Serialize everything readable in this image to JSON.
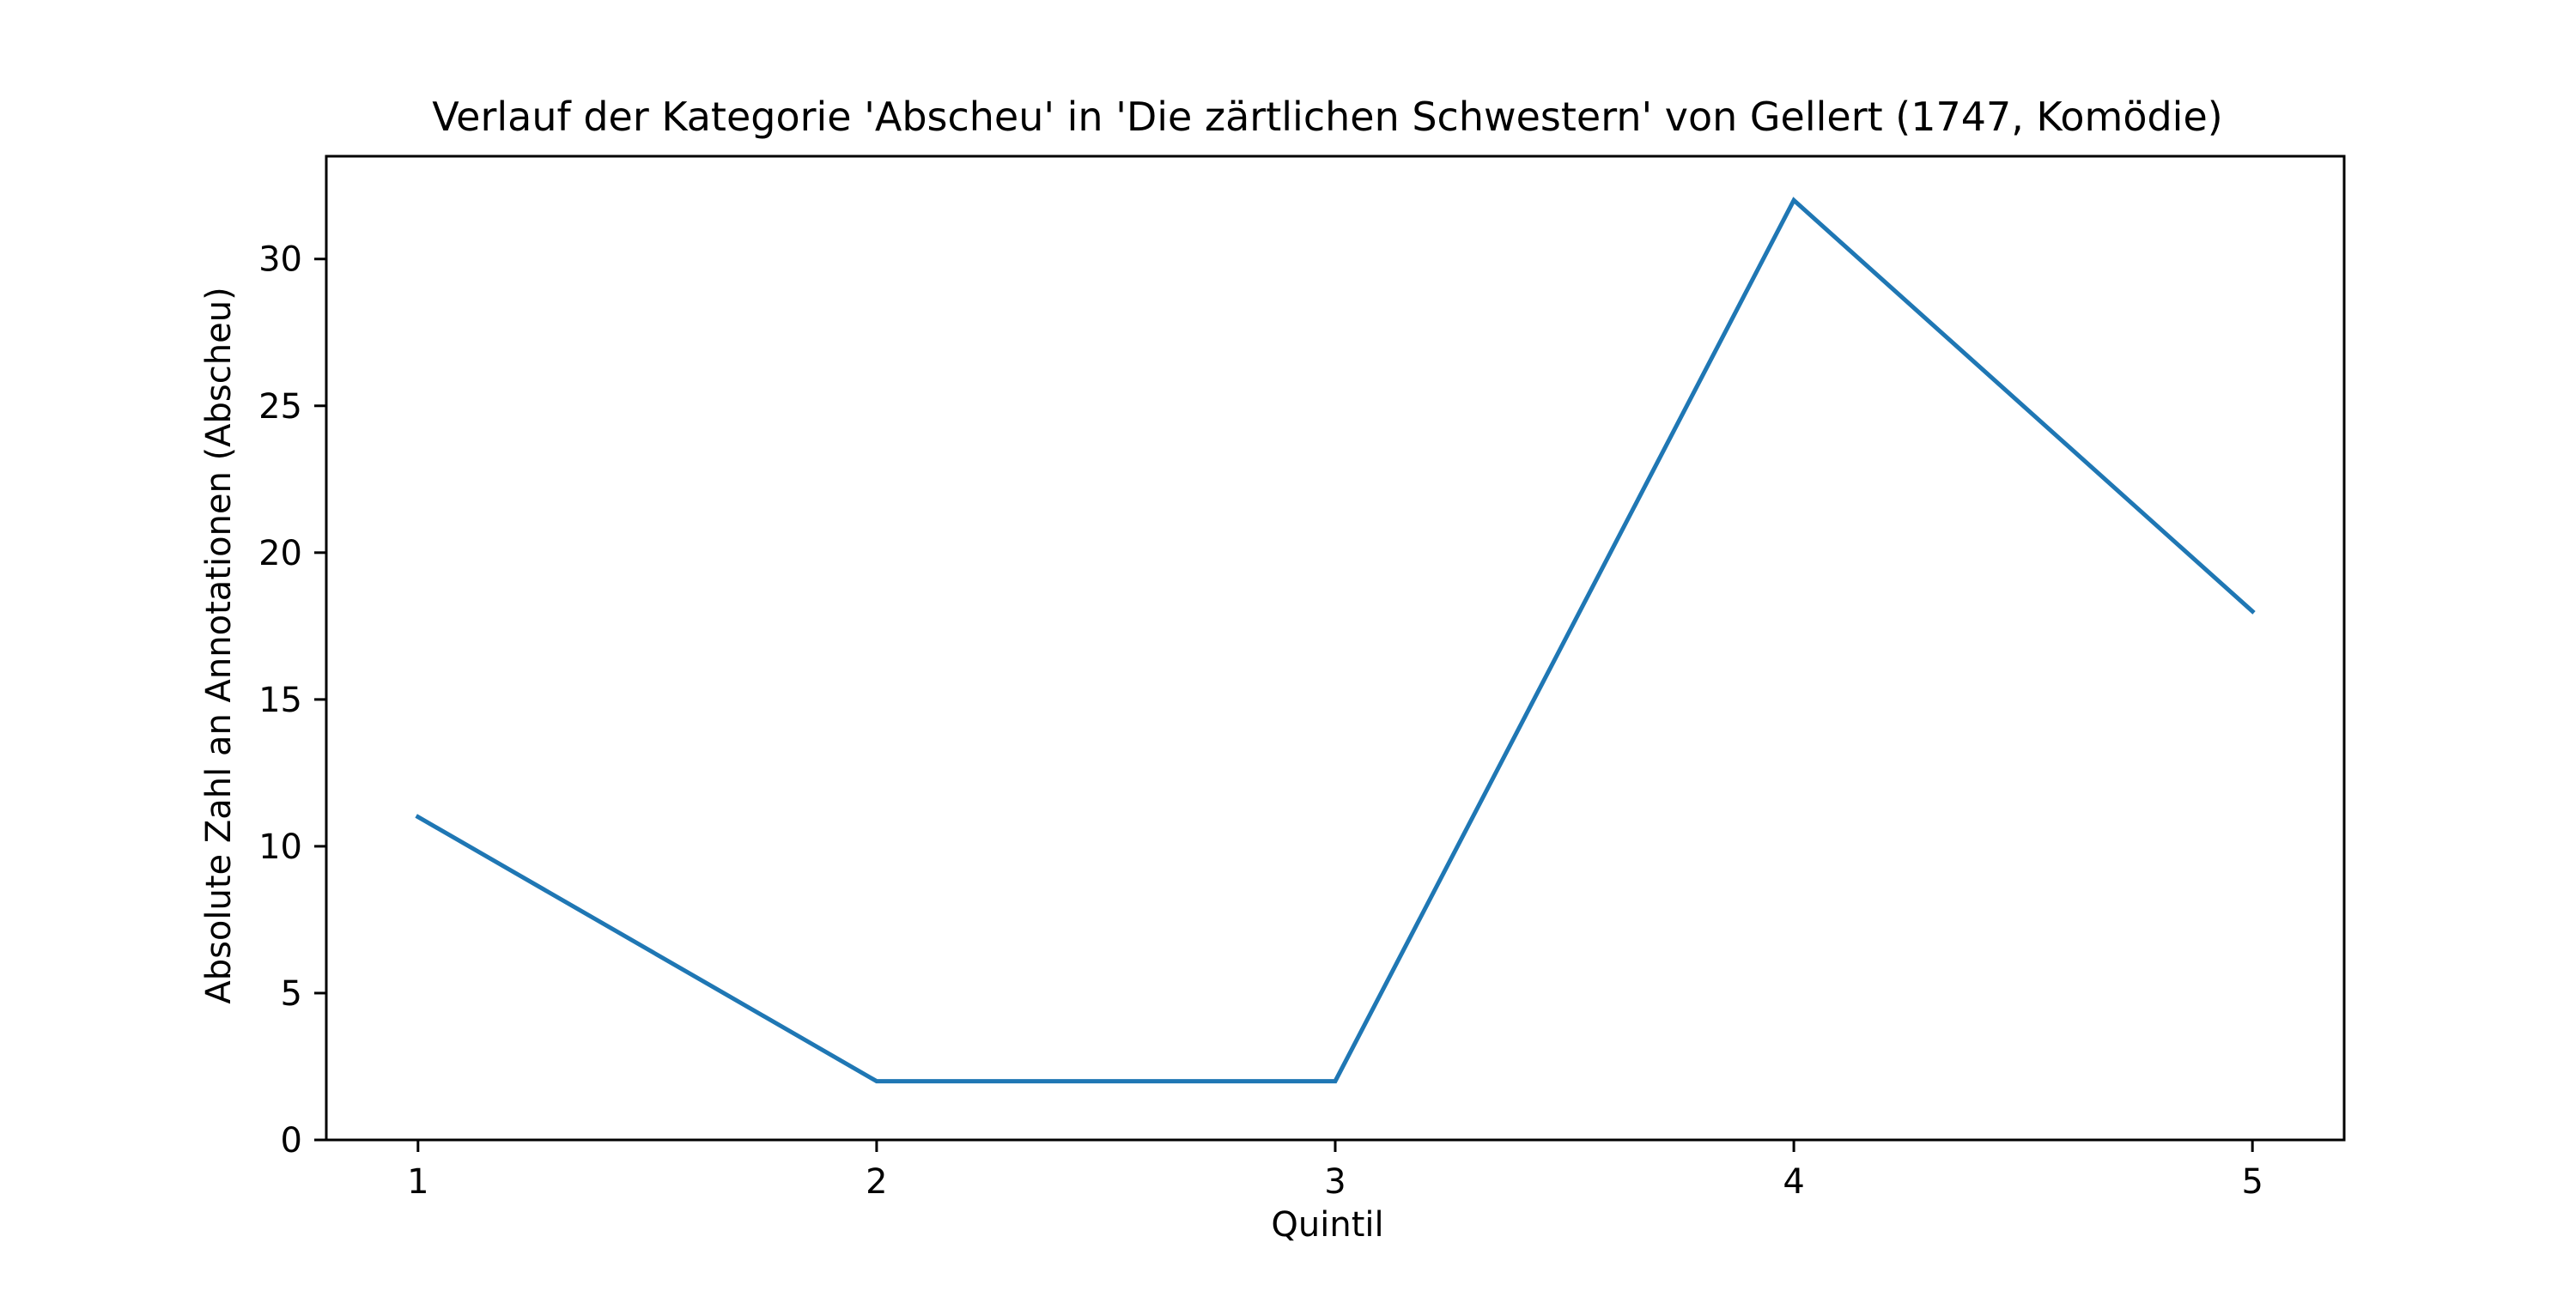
{
  "chart_data": {
    "type": "line",
    "title": "Verlauf der Kategorie 'Abscheu' in 'Die zärtlichen Schwestern' von Gellert (1747, Komödie)",
    "xlabel": "Quintil",
    "ylabel": "Absolute Zahl an Annotationen (Abscheu)",
    "x": [
      1,
      2,
      3,
      4,
      5
    ],
    "x_tick_labels": [
      "1",
      "2",
      "3",
      "4",
      "5"
    ],
    "xlim": [
      0.8,
      5.2
    ],
    "y_ticks": [
      0,
      5,
      10,
      15,
      20,
      25,
      30
    ],
    "y_tick_labels": [
      "0",
      "5",
      "10",
      "15",
      "20",
      "25",
      "30"
    ],
    "ylim": [
      0,
      33.5
    ],
    "series": [
      {
        "values": [
          11,
          2,
          2,
          32,
          18
        ],
        "color": "#1f77b4"
      }
    ],
    "grid": false,
    "legend": "none"
  }
}
